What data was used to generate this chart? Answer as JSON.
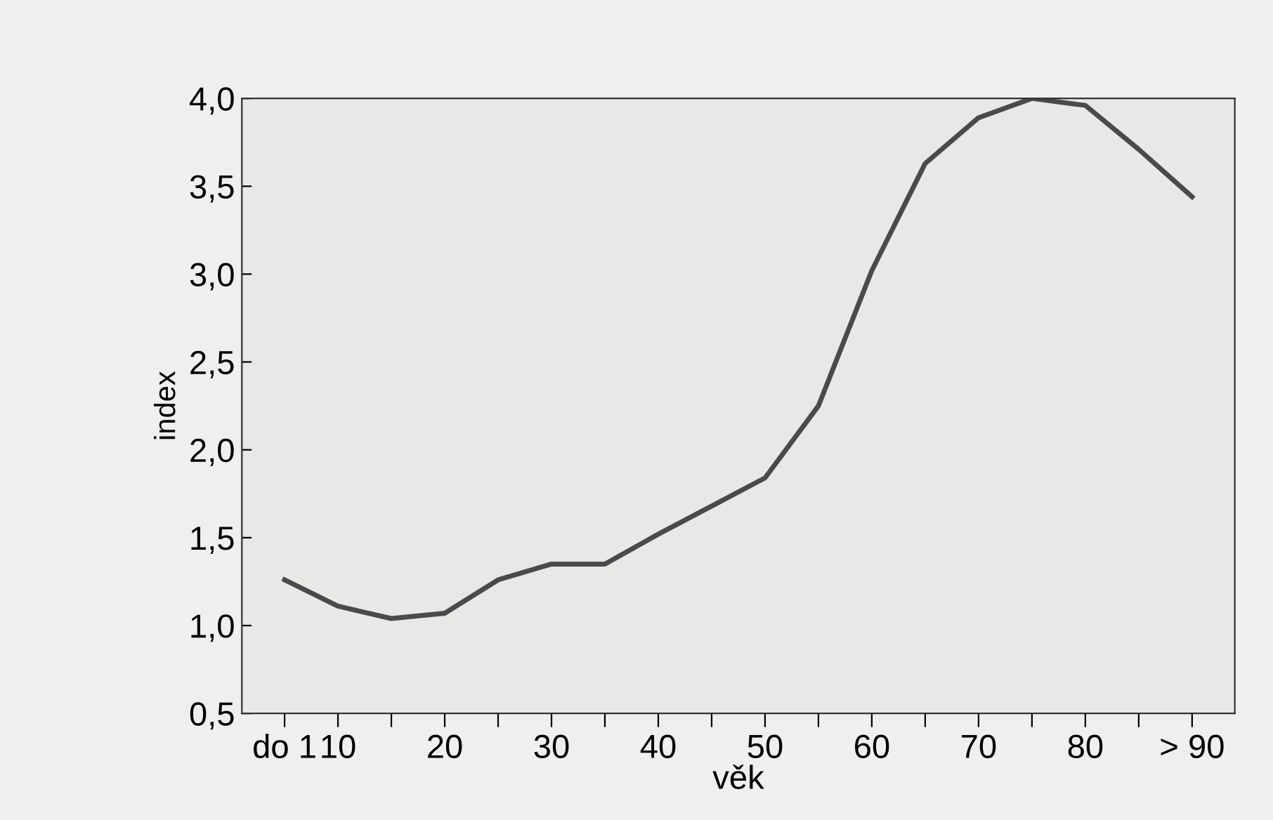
{
  "chart_data": {
    "type": "line",
    "xlabel": "věk",
    "ylabel": "index",
    "categories": [
      "do 1",
      "10",
      null,
      "20",
      null,
      "30",
      null,
      "40",
      null,
      "50",
      null,
      "60",
      null,
      "70",
      null,
      "80",
      null,
      "> 90"
    ],
    "series": [
      {
        "color": "#4a4a4a",
        "values": [
          1.26,
          1.11,
          1.04,
          1.07,
          1.26,
          1.35,
          1.35,
          1.52,
          1.68,
          1.84,
          2.25,
          3.02,
          3.63,
          3.89,
          4.0,
          3.96,
          3.71,
          3.44
        ]
      }
    ],
    "ylim": [
      0.5,
      4.0
    ],
    "yticks": [
      {
        "value": 0.5,
        "label": "0,5"
      },
      {
        "value": 1.0,
        "label": "1,0"
      },
      {
        "value": 1.5,
        "label": "1,5"
      },
      {
        "value": 2.0,
        "label": "2,0"
      },
      {
        "value": 2.5,
        "label": "2,5"
      },
      {
        "value": 3.0,
        "label": "3,0"
      },
      {
        "value": 3.5,
        "label": "3,5"
      },
      {
        "value": 4.0,
        "label": "4,0"
      }
    ],
    "grid": false,
    "legend": false,
    "marker": "none",
    "line_style": "solid"
  }
}
